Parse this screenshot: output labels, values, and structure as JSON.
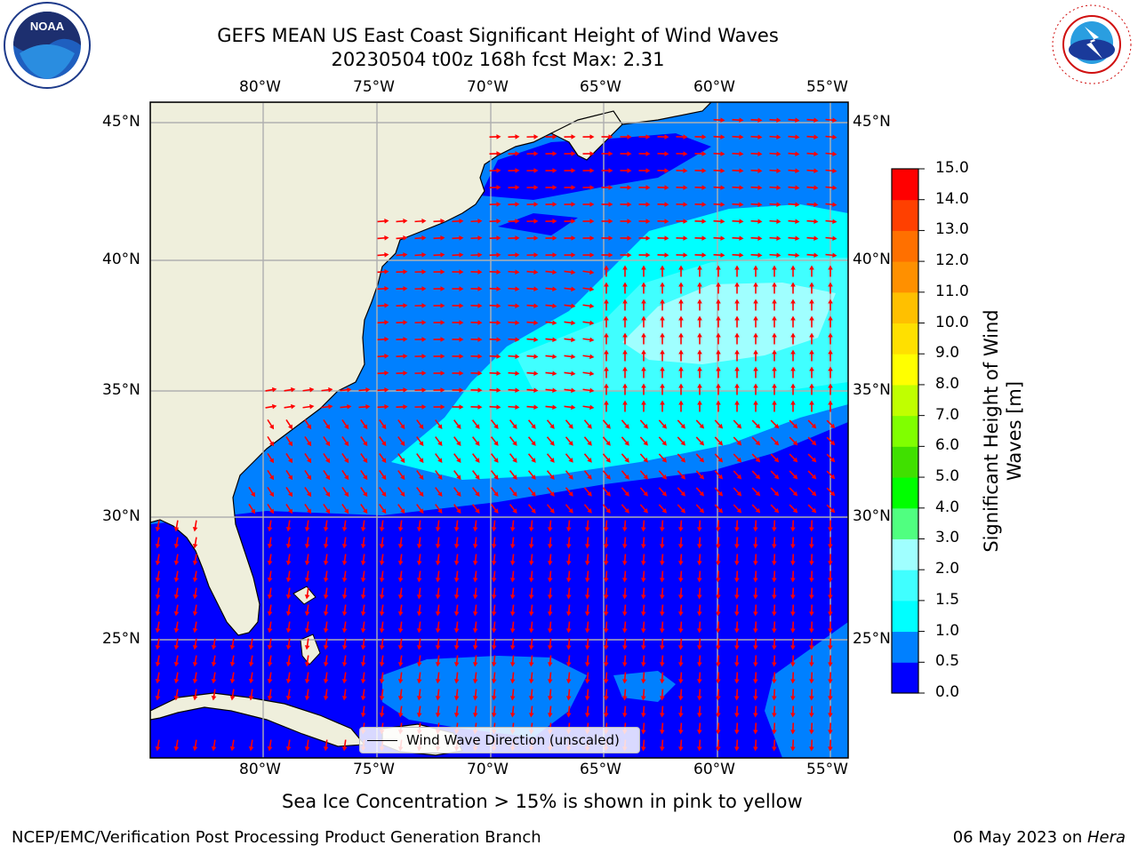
{
  "title_line1": "GEFS MEAN US East Coast Significant Height of Wind Waves",
  "title_line2": "20230504 t00z 168h fcst   Max: 2.31",
  "lon_ticks": [
    "80°W",
    "75°W",
    "70°W",
    "65°W",
    "60°W",
    "55°W"
  ],
  "lat_ticks": [
    "45°N",
    "40°N",
    "35°N",
    "30°N",
    "25°N"
  ],
  "legend_label": "Wind Wave Direction (unscaled)",
  "colorbar": {
    "label": "Significant Height of Wind Waves [m]",
    "ticks": [
      "0.0",
      "0.5",
      "1.0",
      "1.5",
      "2.0",
      "3.0",
      "4.0",
      "5.0",
      "6.0",
      "7.0",
      "8.0",
      "9.0",
      "10.0",
      "11.0",
      "12.0",
      "13.0",
      "14.0",
      "15.0"
    ],
    "colors": [
      "#0000ff",
      "#0080ff",
      "#00ffff",
      "#40ffff",
      "#a0ffff",
      "#50ff80",
      "#00ff00",
      "#40e000",
      "#80ff00",
      "#c0ff00",
      "#ffff00",
      "#ffe000",
      "#ffc000",
      "#ff9000",
      "#ff7000",
      "#ff4000",
      "#ff0000"
    ]
  },
  "colors": {
    "land": "#efefdc",
    "coast": "#000000",
    "arrow": "#ff0000",
    "grid": "#b0b0b0"
  },
  "sea_ice_note": "Sea Ice Concentration > 15% is shown in pink to yellow",
  "footer_left": "NCEP/EMC/Verification Post Processing Product Generation Branch",
  "footer_date": "06 May 2023 on ",
  "footer_machine": "Hera",
  "logos": {
    "noaa": "NOAA",
    "nws": "NATIONAL WEATHER SERVICE"
  }
}
